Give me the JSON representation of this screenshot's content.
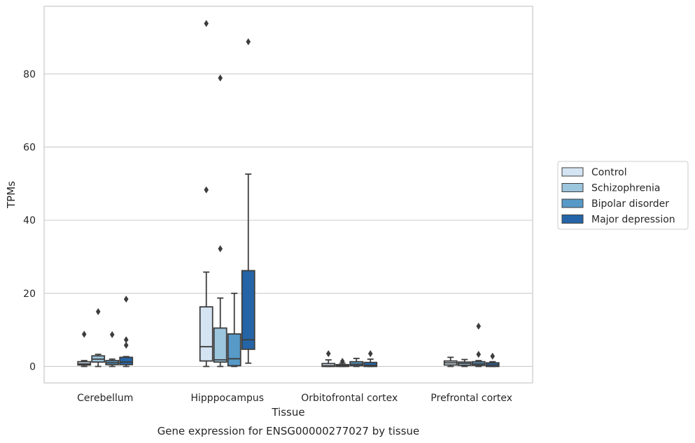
{
  "chart_data": {
    "type": "box",
    "title": "",
    "caption": "Gene expression for ENSG00000277027 by tissue",
    "xlabel": "Tissue",
    "ylabel": "TPMs",
    "ylim": [
      -4.5,
      98.5
    ],
    "yticks": [
      0,
      20,
      40,
      60,
      80
    ],
    "grid": true,
    "legend_position": "right",
    "categories": [
      "Cerebellum",
      "Hipppocampus",
      "Orbitofrontal cortex",
      "Prefrontal cortex"
    ],
    "series": [
      {
        "name": "Control",
        "color": "#d5e4f2",
        "boxes": [
          {
            "whisker_low": 0,
            "q1": 0.4,
            "median": 0.7,
            "q3": 1.3,
            "whisker_high": 1.6,
            "outliers": [
              8.8
            ]
          },
          {
            "whisker_low": 0,
            "q1": 1.5,
            "median": 5.4,
            "q3": 16.3,
            "whisker_high": 25.8,
            "outliers": [
              48.3,
              93.8
            ]
          },
          {
            "whisker_low": 0,
            "q1": 0,
            "median": 0.2,
            "q3": 0.8,
            "whisker_high": 1.8,
            "outliers": [
              3.5
            ]
          },
          {
            "whisker_low": 0,
            "q1": 0.4,
            "median": 1.0,
            "q3": 1.5,
            "whisker_high": 2.5,
            "outliers": []
          }
        ]
      },
      {
        "name": "Schizophrenia",
        "color": "#9cc5de",
        "boxes": [
          {
            "whisker_low": 0,
            "q1": 1.2,
            "median": 2.0,
            "q3": 2.9,
            "whisker_high": 3.3,
            "outliers": [
              15.0
            ]
          },
          {
            "whisker_low": 0,
            "q1": 1.2,
            "median": 1.8,
            "q3": 10.5,
            "whisker_high": 18.7,
            "outliers": [
              32.2,
              78.9
            ]
          },
          {
            "whisker_low": 0,
            "q1": 0,
            "median": 0.2,
            "q3": 0.5,
            "whisker_high": 0.9,
            "outliers": [
              1.4
            ]
          },
          {
            "whisker_low": 0,
            "q1": 0.3,
            "median": 0.8,
            "q3": 1.2,
            "whisker_high": 1.9,
            "outliers": []
          }
        ]
      },
      {
        "name": "Bipolar disorder",
        "color": "#5799c7",
        "boxes": [
          {
            "whisker_low": 0,
            "q1": 0.5,
            "median": 1.0,
            "q3": 1.6,
            "whisker_high": 2.0,
            "outliers": [
              8.7
            ]
          },
          {
            "whisker_low": 0,
            "q1": 0.2,
            "median": 2.1,
            "q3": 8.9,
            "whisker_high": 20.0,
            "outliers": []
          },
          {
            "whisker_low": 0,
            "q1": 0.2,
            "median": 0.6,
            "q3": 1.3,
            "whisker_high": 2.2,
            "outliers": []
          },
          {
            "whisker_low": 0,
            "q1": 0.3,
            "median": 0.7,
            "q3": 1.3,
            "whisker_high": 1.6,
            "outliers": [
              3.3,
              11.0
            ]
          }
        ]
      },
      {
        "name": "Major depression",
        "color": "#2565a7",
        "boxes": [
          {
            "whisker_low": 0,
            "q1": 0.5,
            "median": 1.2,
            "q3": 2.5,
            "whisker_high": 2.7,
            "outliers": [
              5.8,
              7.3,
              18.4
            ]
          },
          {
            "whisker_low": 0.9,
            "q1": 4.7,
            "median": 7.3,
            "q3": 26.2,
            "whisker_high": 52.6,
            "outliers": [
              88.8
            ]
          },
          {
            "whisker_low": 0,
            "q1": 0,
            "median": 0.3,
            "q3": 1.1,
            "whisker_high": 2.0,
            "outliers": [
              3.5
            ]
          },
          {
            "whisker_low": 0,
            "q1": 0,
            "median": 0.4,
            "q3": 1.0,
            "whisker_high": 1.3,
            "outliers": [
              2.8
            ]
          }
        ]
      }
    ]
  }
}
